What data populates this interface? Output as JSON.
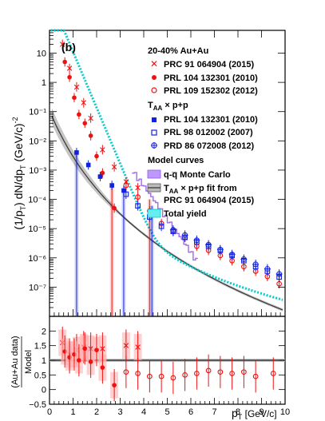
{
  "chart_data": [
    {
      "type": "scatter",
      "panel_label": "(b)",
      "ylabel_main": "(1/p",
      "ylabel_sub": "T",
      "ylabel_rest": ") dN/dp",
      "ylabel_sub2": "T",
      "ylabel_units": " (GeV/c)",
      "ylabel_sup": "-2",
      "ylog": true,
      "ylim": [
        1e-08,
        60
      ],
      "xlim": [
        0,
        10
      ],
      "ytick_labels": [
        "10",
        "1",
        "10⁻¹",
        "10⁻²",
        "10⁻³",
        "10⁻⁴",
        "10⁻⁵",
        "10⁻⁶",
        "10⁻⁷"
      ],
      "ytick_values": [
        10,
        1,
        0.1,
        0.01,
        0.001,
        0.0001,
        1e-05,
        1e-06,
        1e-07
      ],
      "legend": {
        "title1": "20-40% Au+Au",
        "aa_entries": [
          "PRC 91 064904 (2015)",
          "PRL 104 132301 (2010)",
          "PRL 109 152302 (2012)"
        ],
        "title2": "T",
        "title2_sub": "AA",
        "title2_rest": " × p+p",
        "pp_entries": [
          "PRL 104 132301 (2010)",
          "PRL 98 012002 (2007)",
          "PRD 86 072008 (2012)"
        ],
        "title3": "Model curves",
        "model_entries": [
          "q-q̅ Monte Carlo",
          "T",
          "AA",
          " × p+p fit from",
          "PRC 91 064904 (2015)",
          "Total yield"
        ]
      },
      "colors": {
        "aa": "#ee1111",
        "pp": "#1122dd",
        "qqbar": "#9955ee",
        "fit": "#555555",
        "total": "#00cccc"
      },
      "series": [
        {
          "name": "PRC 91 064904 (2015)",
          "marker": "star",
          "x": [
            0.55,
            0.85,
            1.15,
            1.45,
            1.75,
            2.25,
            2.75,
            3.25,
            3.75
          ],
          "y": [
            20,
            3.0,
            0.7,
            0.2,
            0.06,
            0.005,
            0.0013,
            0.0004,
            0.00025
          ]
        },
        {
          "name": "PRL 104 132301 (2010)",
          "marker": "filled-circle",
          "x": [
            0.65,
            0.85,
            1.05,
            1.25,
            1.5,
            1.75,
            2.0,
            2.25,
            2.75
          ],
          "y": [
            5,
            1.5,
            0.3,
            0.08,
            0.04,
            0.015,
            0.003,
            0.0008,
            5e-05
          ]
        },
        {
          "name": "PRL 109 152302 (2012)",
          "marker": "open-circle",
          "x": [
            3.25,
            3.75,
            4.25,
            4.75,
            5.25,
            5.75,
            6.25,
            6.75,
            7.25,
            7.75,
            8.25,
            8.75,
            9.25,
            9.75
          ],
          "y": [
            0.0003,
            0.00012,
            4e-05,
            1.5e-05,
            8e-06,
            5e-06,
            2.5e-06,
            1.8e-06,
            1.2e-06,
            8e-07,
            5e-07,
            3.5e-07,
            2.3e-07,
            1.3e-07
          ]
        },
        {
          "name": "T_AA x p+p: PRL 104 132301 (2010)",
          "marker": "filled-square",
          "x": [
            1.15,
            1.65,
            2.15,
            2.65,
            3.15
          ],
          "y": [
            0.004,
            0.0015,
            0.0006,
            0.0003,
            0.0002
          ]
        },
        {
          "name": "PRL 98 012002 (2007)",
          "marker": "open-square",
          "x": [
            3.25,
            3.75,
            4.25,
            4.75,
            5.25,
            5.75,
            6.25,
            6.75,
            7.25,
            7.75,
            8.25,
            8.75,
            9.25,
            9.75
          ],
          "y": [
            0.00015,
            6e-05,
            2.5e-05,
            1.2e-05,
            8e-06,
            5e-06,
            3.5e-06,
            2.5e-06,
            1.8e-06,
            1.2e-06,
            8e-07,
            5e-07,
            3.5e-07,
            2.2e-07
          ]
        },
        {
          "name": "PRD 86 072008 (2012)",
          "marker": "open-cross",
          "x": [
            5.25,
            5.75,
            6.25,
            6.75,
            7.25,
            7.75,
            8.25,
            8.75,
            9.25,
            9.75
          ],
          "y": [
            9e-06,
            6e-06,
            4e-06,
            2.8e-06,
            1.9e-06,
            1.3e-06,
            9e-07,
            6e-07,
            4.2e-07,
            2.8e-07
          ]
        }
      ]
    },
    {
      "type": "scatter",
      "ylabel_line1": "(Au+Au data)",
      "ylabel_line2": "Model",
      "xlabel_main": "p",
      "xlabel_sub": "T",
      "xlabel_rest": " [GeV/c]",
      "xlim": [
        0,
        10
      ],
      "ylim": [
        -0.5,
        2.5
      ],
      "xtick_labels": [
        "0",
        "1",
        "2",
        "3",
        "4",
        "5",
        "6",
        "7",
        "8",
        "9",
        "10"
      ],
      "ytick_labels": [
        "−0.5",
        "0",
        "0.5",
        "1",
        "1.5",
        "2"
      ],
      "ytick_values": [
        -0.5,
        0,
        0.5,
        1,
        1.5,
        2
      ],
      "series": [
        {
          "name": "PRC 91 064904 (2015)",
          "marker": "star",
          "x": [
            0.55,
            0.85,
            1.15,
            1.45,
            1.75,
            2.25,
            3.25,
            3.75
          ],
          "y": [
            1.6,
            1.2,
            1.35,
            1.45,
            1.4,
            1.4,
            1.5,
            1.45
          ]
        },
        {
          "name": "PRL 104 132301 (2010)",
          "marker": "filled-circle",
          "x": [
            0.65,
            0.85,
            1.05,
            1.25,
            1.5,
            1.75,
            2.0,
            2.25,
            2.75
          ],
          "y": [
            1.3,
            1.1,
            1.2,
            1.0,
            1.4,
            0.95,
            1.35,
            0.75,
            0.15
          ]
        },
        {
          "name": "PRL 109 152302 (2012)",
          "marker": "open-circle",
          "x": [
            3.25,
            3.75,
            4.25,
            4.75,
            5.25,
            5.75,
            6.25,
            6.75,
            7.25,
            7.75,
            8.25,
            8.75,
            9.5
          ],
          "y": [
            0.6,
            0.55,
            0.45,
            0.45,
            0.4,
            0.5,
            0.55,
            0.65,
            0.6,
            0.55,
            0.6,
            0.45,
            0.55
          ]
        }
      ]
    }
  ]
}
